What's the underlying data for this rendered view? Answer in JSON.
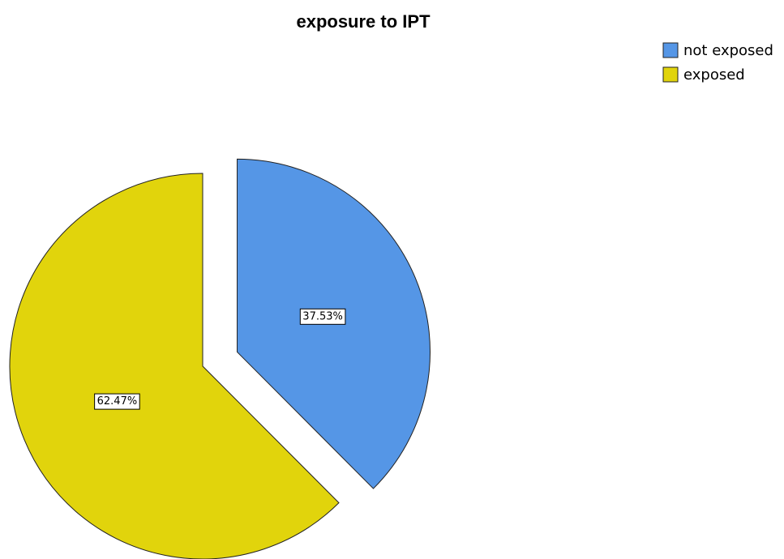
{
  "chart_data": {
    "type": "pie",
    "title": "exposure to IPT",
    "categories": [
      "not exposed",
      "exposed"
    ],
    "values": [
      37.53,
      62.47
    ],
    "value_labels": [
      "37.53%",
      "62.47%"
    ],
    "colors": [
      "#5596e6",
      "#e1d40c"
    ],
    "exploded": [
      "not exposed"
    ],
    "legend": "top-right"
  }
}
